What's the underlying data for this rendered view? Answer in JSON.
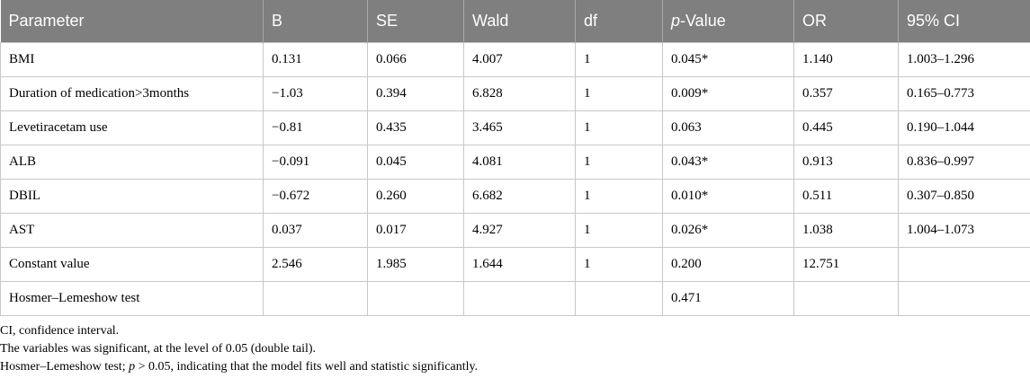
{
  "table": {
    "headers": [
      {
        "pre": "",
        "em": "",
        "post": "Parameter"
      },
      {
        "pre": "",
        "em": "",
        "post": "B"
      },
      {
        "pre": "",
        "em": "",
        "post": "SE"
      },
      {
        "pre": "",
        "em": "",
        "post": "Wald"
      },
      {
        "pre": "",
        "em": "",
        "post": "df"
      },
      {
        "pre": "",
        "em": "p",
        "post": "-Value"
      },
      {
        "pre": "",
        "em": "",
        "post": "OR"
      },
      {
        "pre": "",
        "em": "",
        "post": "95% CI"
      }
    ],
    "rows": [
      [
        "BMI",
        "0.131",
        "0.066",
        "4.007",
        "1",
        "0.045*",
        "1.140",
        "1.003–1.296"
      ],
      [
        "Duration of medication>3months",
        "−1.03",
        "0.394",
        "6.828",
        "1",
        "0.009*",
        "0.357",
        "0.165–0.773"
      ],
      [
        "Levetiracetam use",
        "−0.81",
        "0.435",
        "3.465",
        "1",
        "0.063",
        "0.445",
        "0.190–1.044"
      ],
      [
        "ALB",
        "−0.091",
        "0.045",
        "4.081",
        "1",
        "0.043*",
        "0.913",
        "0.836–0.997"
      ],
      [
        "DBIL",
        "−0.672",
        "0.260",
        "6.682",
        "1",
        "0.010*",
        "0.511",
        "0.307–0.850"
      ],
      [
        "AST",
        "0.037",
        "0.017",
        "4.927",
        "1",
        "0.026*",
        "1.038",
        "1.004–1.073"
      ],
      [
        "Constant value",
        "2.546",
        "1.985",
        "1.644",
        "1",
        "0.200",
        "12.751",
        ""
      ],
      [
        "Hosmer–Lemeshow test",
        "",
        "",
        "",
        "",
        "0.471",
        "",
        ""
      ]
    ]
  },
  "footnotes": [
    {
      "pre": "CI, confidence interval.",
      "em": "",
      "post": ""
    },
    {
      "pre": "The variables was significant, at the level of 0.05 (double tail).",
      "em": "",
      "post": ""
    },
    {
      "pre": "Hosmer–Lemeshow test; ",
      "em": "p",
      "post": " > 0.05, indicating that the model fits well and statistic significantly."
    }
  ],
  "colors": {
    "header_bg": "#7f7f7f",
    "header_text": "#ffffff",
    "grid": "#c8c8c8"
  }
}
